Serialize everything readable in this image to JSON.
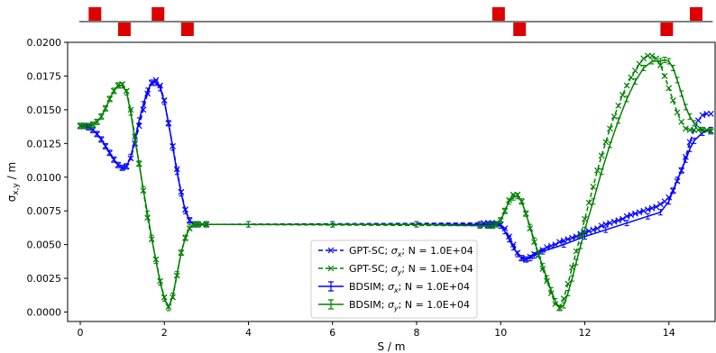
{
  "chart_data": {
    "type": "line",
    "xlabel": "S / m",
    "ylabel_main": "σ",
    "ylabel_sub": "x,y",
    "ylabel_unit": " / m",
    "xlim": [
      -0.3,
      15.1
    ],
    "ylim": [
      -0.0007,
      0.02
    ],
    "x_ticks": [
      0,
      2,
      4,
      6,
      8,
      10,
      12,
      14
    ],
    "x_tick_labels": [
      "0",
      "2",
      "4",
      "6",
      "8",
      "10",
      "12",
      "14"
    ],
    "y_ticks": [
      0.0,
      0.0025,
      0.005,
      0.0075,
      0.01,
      0.0125,
      0.015,
      0.0175,
      0.02
    ],
    "y_tick_labels": [
      "0.0000",
      "0.0025",
      "0.0050",
      "0.0075",
      "0.0100",
      "0.0125",
      "0.0150",
      "0.0175",
      "0.0200"
    ],
    "grid": false,
    "legend_position": "lower-center",
    "magnets": [
      {
        "s": 0.35,
        "side": "up"
      },
      {
        "s": 1.05,
        "side": "down"
      },
      {
        "s": 1.85,
        "side": "up"
      },
      {
        "s": 2.55,
        "side": "down"
      },
      {
        "s": 9.95,
        "side": "up"
      },
      {
        "s": 10.45,
        "side": "down"
      },
      {
        "s": 13.95,
        "side": "down"
      },
      {
        "s": 14.65,
        "side": "up"
      }
    ],
    "magnet_color": "#dd0000",
    "series": [
      {
        "name_prefix": "GPT-SC; ",
        "name_var": "σ",
        "name_sub": "x",
        "name_suffix": "; N = 1.0E+04",
        "color": "#0000ff",
        "style": "dashed-x",
        "x": [
          0,
          0.1,
          0.2,
          0.3,
          0.4,
          0.5,
          0.6,
          0.7,
          0.8,
          0.9,
          1.0,
          1.1,
          1.2,
          1.3,
          1.4,
          1.5,
          1.6,
          1.7,
          1.8,
          1.9,
          2.0,
          2.1,
          2.2,
          2.3,
          2.4,
          2.5,
          2.6,
          2.7,
          2.8,
          2.9,
          3.0,
          9.6,
          9.7,
          9.8,
          9.9,
          10.0,
          10.1,
          10.2,
          10.3,
          10.4,
          10.5,
          10.6,
          10.7,
          10.8,
          10.9,
          11.0,
          11.1,
          11.2,
          11.3,
          11.4,
          11.5,
          11.6,
          11.7,
          11.8,
          11.9,
          12.0,
          12.1,
          12.2,
          12.3,
          12.4,
          12.5,
          12.6,
          12.7,
          12.8,
          12.9,
          13.0,
          13.1,
          13.2,
          13.3,
          13.4,
          13.5,
          13.6,
          13.7,
          13.8,
          13.9,
          14.0,
          14.1,
          14.2,
          14.3,
          14.4,
          14.5,
          14.6,
          14.7,
          14.8,
          14.9,
          15.0
        ],
        "y": [
          0.0138,
          0.0138,
          0.0137,
          0.0135,
          0.0132,
          0.0128,
          0.0123,
          0.0118,
          0.0113,
          0.0109,
          0.0107,
          0.0108,
          0.0114,
          0.0125,
          0.0138,
          0.015,
          0.0162,
          0.017,
          0.0172,
          0.0168,
          0.0157,
          0.014,
          0.0123,
          0.0106,
          0.0089,
          0.0076,
          0.0068,
          0.0065,
          0.0065,
          0.0065,
          0.0065,
          0.0066,
          0.0066,
          0.0066,
          0.0066,
          0.0065,
          0.0062,
          0.0056,
          0.005,
          0.0044,
          0.004,
          0.0039,
          0.0041,
          0.0043,
          0.0045,
          0.0046,
          0.0048,
          0.0049,
          0.005,
          0.0052,
          0.0053,
          0.0054,
          0.0055,
          0.0056,
          0.0058,
          0.0059,
          0.006,
          0.0061,
          0.0062,
          0.0064,
          0.0065,
          0.0066,
          0.0067,
          0.0068,
          0.0069,
          0.0071,
          0.0072,
          0.0073,
          0.0074,
          0.0075,
          0.0076,
          0.0077,
          0.0078,
          0.008,
          0.0082,
          0.0085,
          0.009,
          0.0097,
          0.0105,
          0.0115,
          0.0126,
          0.0135,
          0.0142,
          0.0146,
          0.0147,
          0.0147
        ]
      },
      {
        "name_prefix": "GPT-SC; ",
        "name_var": "σ",
        "name_sub": "y",
        "name_suffix": "; N = 1.0E+04",
        "color": "#008000",
        "style": "dashed-x",
        "x": [
          0,
          0.1,
          0.2,
          0.3,
          0.4,
          0.5,
          0.6,
          0.7,
          0.8,
          0.9,
          1.0,
          1.1,
          1.2,
          1.3,
          1.4,
          1.5,
          1.6,
          1.7,
          1.8,
          1.9,
          2.0,
          2.1,
          2.2,
          2.3,
          2.4,
          2.5,
          2.6,
          2.7,
          2.8,
          2.9,
          3.0,
          9.6,
          9.7,
          9.8,
          9.9,
          10.0,
          10.1,
          10.2,
          10.3,
          10.4,
          10.5,
          10.6,
          10.7,
          10.8,
          10.9,
          11.0,
          11.1,
          11.2,
          11.3,
          11.4,
          11.5,
          11.6,
          11.7,
          11.8,
          11.9,
          12.0,
          12.1,
          12.2,
          12.3,
          12.4,
          12.5,
          12.6,
          12.7,
          12.8,
          12.9,
          13.0,
          13.1,
          13.2,
          13.3,
          13.4,
          13.5,
          13.6,
          13.7,
          13.8,
          13.9,
          14.0,
          14.1,
          14.2,
          14.3,
          14.4,
          14.5,
          14.6,
          14.7,
          14.8,
          14.9,
          15.0
        ],
        "y": [
          0.0138,
          0.0138,
          0.0138,
          0.0139,
          0.0141,
          0.0145,
          0.0151,
          0.0158,
          0.0164,
          0.0168,
          0.0169,
          0.0164,
          0.015,
          0.013,
          0.011,
          0.009,
          0.007,
          0.0054,
          0.0039,
          0.0023,
          0.0011,
          0.0004,
          0.0011,
          0.0027,
          0.0044,
          0.0055,
          0.0062,
          0.0065,
          0.0065,
          0.0065,
          0.0065,
          0.0064,
          0.0064,
          0.0064,
          0.0065,
          0.0068,
          0.0075,
          0.0083,
          0.0087,
          0.0087,
          0.0082,
          0.0073,
          0.0062,
          0.0052,
          0.0042,
          0.0032,
          0.0023,
          0.0014,
          0.0006,
          0.0003,
          0.001,
          0.0021,
          0.0033,
          0.0045,
          0.0057,
          0.0069,
          0.0081,
          0.0093,
          0.0105,
          0.0116,
          0.0126,
          0.0136,
          0.0145,
          0.0153,
          0.0161,
          0.0168,
          0.0174,
          0.0179,
          0.0184,
          0.0188,
          0.019,
          0.019,
          0.0188,
          0.0183,
          0.0175,
          0.0166,
          0.0157,
          0.0148,
          0.0141,
          0.0136,
          0.0135,
          0.0135,
          0.0135,
          0.0135,
          0.0135,
          0.0134
        ]
      },
      {
        "name_prefix": "BDSIM; ",
        "name_var": "σ",
        "name_sub": "x",
        "name_suffix": "; N = 1.0E+04",
        "color": "#0000ff",
        "style": "solid-errorbar",
        "x": [
          0,
          0.1,
          0.2,
          0.3,
          0.4,
          0.5,
          0.6,
          0.7,
          0.8,
          0.9,
          1.0,
          1.1,
          1.2,
          1.3,
          1.4,
          1.5,
          1.6,
          1.7,
          1.8,
          1.9,
          2.0,
          2.1,
          2.2,
          2.3,
          2.4,
          2.5,
          2.6,
          2.7,
          2.8,
          3.0,
          4.0,
          6.0,
          8.0,
          9.5,
          9.7,
          9.8,
          9.9,
          10.0,
          10.1,
          10.2,
          10.3,
          10.4,
          10.5,
          10.6,
          10.7,
          10.8,
          11.0,
          11.5,
          12.0,
          12.5,
          13.0,
          13.5,
          13.8,
          14.0,
          14.1,
          14.2,
          14.3,
          14.4,
          14.5,
          14.6,
          14.8,
          15.0
        ],
        "y": [
          0.0138,
          0.0138,
          0.0137,
          0.0135,
          0.0132,
          0.0128,
          0.0123,
          0.0118,
          0.0113,
          0.0109,
          0.0107,
          0.0108,
          0.0115,
          0.0128,
          0.0142,
          0.0154,
          0.0164,
          0.017,
          0.017,
          0.0166,
          0.0156,
          0.014,
          0.0122,
          0.0104,
          0.0088,
          0.0075,
          0.0068,
          0.0065,
          0.0065,
          0.0065,
          0.0065,
          0.0065,
          0.0065,
          0.0065,
          0.0065,
          0.0065,
          0.0065,
          0.0064,
          0.006,
          0.0054,
          0.0048,
          0.0043,
          0.004,
          0.0039,
          0.004,
          0.0042,
          0.0045,
          0.005,
          0.0056,
          0.0061,
          0.0066,
          0.0071,
          0.0074,
          0.0082,
          0.009,
          0.0098,
          0.0105,
          0.0113,
          0.0121,
          0.0127,
          0.0133,
          0.0135
        ]
      },
      {
        "name_prefix": "BDSIM; ",
        "name_var": "σ",
        "name_sub": "y",
        "name_suffix": "; N = 1.0E+04",
        "color": "#008000",
        "style": "solid-errorbar",
        "x": [
          0,
          0.1,
          0.2,
          0.3,
          0.4,
          0.5,
          0.6,
          0.7,
          0.8,
          0.9,
          1.0,
          1.1,
          1.2,
          1.3,
          1.4,
          1.5,
          1.6,
          1.7,
          1.8,
          1.9,
          2.0,
          2.1,
          2.2,
          2.3,
          2.4,
          2.5,
          2.6,
          2.7,
          2.8,
          3.0,
          4.0,
          6.0,
          8.0,
          9.5,
          9.7,
          9.8,
          9.9,
          10.0,
          10.1,
          10.2,
          10.3,
          10.4,
          10.5,
          10.6,
          10.7,
          10.8,
          10.9,
          11.0,
          11.1,
          11.2,
          11.3,
          11.4,
          11.5,
          11.6,
          11.7,
          11.8,
          11.9,
          12.0,
          12.2,
          12.4,
          12.6,
          12.8,
          13.0,
          13.2,
          13.4,
          13.6,
          13.8,
          13.9,
          14.0,
          14.1,
          14.2,
          14.3,
          14.4,
          14.5,
          14.6,
          14.8,
          15.0
        ],
        "y": [
          0.0138,
          0.0138,
          0.0138,
          0.0139,
          0.0141,
          0.0145,
          0.0151,
          0.0158,
          0.0164,
          0.0168,
          0.0168,
          0.0163,
          0.0148,
          0.0128,
          0.011,
          0.0091,
          0.0073,
          0.0055,
          0.0038,
          0.0022,
          0.001,
          0.0003,
          0.0012,
          0.0028,
          0.0044,
          0.0055,
          0.0063,
          0.0065,
          0.0065,
          0.0065,
          0.0065,
          0.0065,
          0.0065,
          0.0064,
          0.0064,
          0.0064,
          0.0065,
          0.0068,
          0.0075,
          0.0082,
          0.0085,
          0.0086,
          0.0082,
          0.0073,
          0.0063,
          0.0053,
          0.0043,
          0.0034,
          0.0025,
          0.0016,
          0.0008,
          0.0003,
          0.0005,
          0.0014,
          0.0025,
          0.0037,
          0.0049,
          0.0061,
          0.0082,
          0.0104,
          0.0124,
          0.0142,
          0.0158,
          0.0171,
          0.0181,
          0.0186,
          0.0186,
          0.0187,
          0.0186,
          0.0181,
          0.0172,
          0.0162,
          0.0152,
          0.0145,
          0.014,
          0.0135,
          0.0134
        ]
      }
    ]
  }
}
